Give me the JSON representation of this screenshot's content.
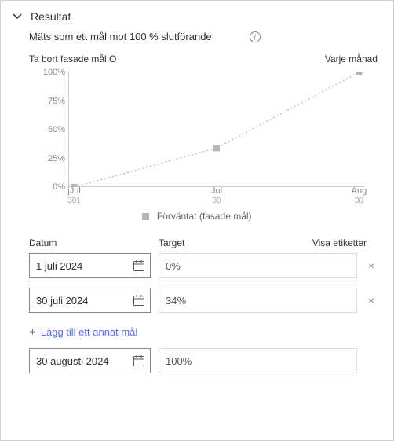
{
  "header": {
    "title": "Resultat",
    "subtitle": "Mäts som ett mål mot 100 % slutförande",
    "remove_label": "Ta bort fasade mål O",
    "frequency": "Varje månad"
  },
  "chart": {
    "type": "line",
    "background_color": "#ffffff",
    "grid_color": "#cccccc",
    "line_color": "#bfbfbf",
    "marker_color": "#b6b6b6",
    "marker_size": 8,
    "line_dash": "2,3",
    "ylim": [
      0,
      100
    ],
    "yticks": [
      {
        "v": 0,
        "label": "0%"
      },
      {
        "v": 25,
        "label": "25%"
      },
      {
        "v": 50,
        "label": "50%"
      },
      {
        "v": 75,
        "label": "75%"
      },
      {
        "v": 100,
        "label": "100%"
      }
    ],
    "points": [
      {
        "x": 0.02,
        "y": 0,
        "xlabel": "jJul",
        "xsub": "301"
      },
      {
        "x": 0.5,
        "y": 34,
        "xlabel": "Jul",
        "xsub": "30"
      },
      {
        "x": 0.98,
        "y": 100,
        "xlabel": "Aug",
        "xsub": "30"
      }
    ],
    "legend_label": "Förväntat (fasade mål)"
  },
  "table": {
    "col_date": "Datum",
    "col_target": "Target",
    "col_labels": "Visa etiketter",
    "rows": [
      {
        "date": "1 juli 2024",
        "target": "0%",
        "removable": true
      },
      {
        "date": "30 juli 2024",
        "target": "34%",
        "removable": true
      }
    ],
    "add_label": "Lägg till ett annat mål",
    "final_row": {
      "date": "30 augusti 2024",
      "target": "100%"
    }
  }
}
